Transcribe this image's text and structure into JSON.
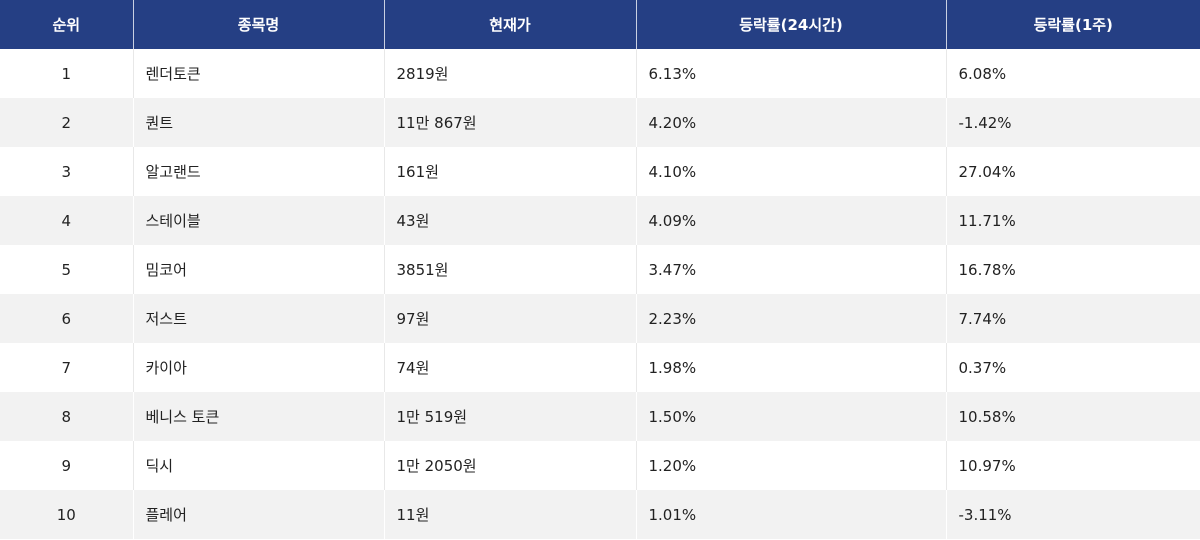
{
  "table": {
    "header": [
      "순위",
      "종목명",
      "현재가",
      "등락률(24시간)",
      "등락률(1주)"
    ],
    "rows": [
      [
        "1",
        "렌더토큰",
        "2819원",
        "6.13%",
        "6.08%"
      ],
      [
        "2",
        "퀀트",
        "11만 867원",
        "4.20%",
        "-1.42%"
      ],
      [
        "3",
        "알고랜드",
        "161원",
        "4.10%",
        "27.04%"
      ],
      [
        "4",
        "스테이블",
        "43원",
        "4.09%",
        "11.71%"
      ],
      [
        "5",
        "밈코어",
        "3851원",
        "3.47%",
        "16.78%"
      ],
      [
        "6",
        "저스트",
        "97원",
        "2.23%",
        "7.74%"
      ],
      [
        "7",
        "카이아",
        "74원",
        "1.98%",
        "0.37%"
      ],
      [
        "8",
        "베니스 토큰",
        "1만 519원",
        "1.50%",
        "10.58%"
      ],
      [
        "9",
        "딕시",
        "1만 2050원",
        "1.20%",
        "10.97%"
      ],
      [
        "10",
        "플레어",
        "11원",
        "1.01%",
        "-3.11%"
      ]
    ]
  }
}
